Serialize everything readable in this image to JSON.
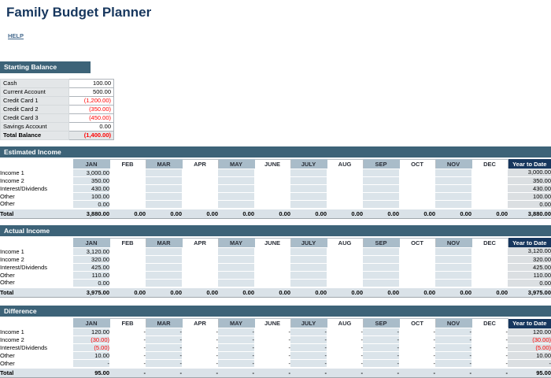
{
  "page": {
    "title": "Family Budget Planner",
    "help_label": "HELP"
  },
  "colors": {
    "title_navy": "#17375E",
    "section_band": "#3D6378",
    "month_header_shade": "#A9BCC9",
    "data_shade": "#DBE4EA",
    "ytd_header": "#17375E",
    "ytd_cell": "#DBDFE2",
    "total_row": "#DAE2E8",
    "negative_red": "#FF0000",
    "label_gray": "#E3E6E8"
  },
  "months": [
    "JAN",
    "FEB",
    "MAR",
    "APR",
    "MAY",
    "JUNE",
    "JULY",
    "AUG",
    "SEP",
    "OCT",
    "NOV",
    "DEC"
  ],
  "ytd_label": "Year to Date",
  "starting_balance": {
    "title": "Starting Balance",
    "rows": [
      {
        "label": "Cash",
        "value": "100.00"
      },
      {
        "label": "Current Account",
        "value": "500.00"
      },
      {
        "label": "Credit Card 1",
        "value": "(1,200.00)"
      },
      {
        "label": "Credit Card 2",
        "value": "(350.00)"
      },
      {
        "label": "Credit Card 3",
        "value": "(450.00)"
      },
      {
        "label": "Savings Account",
        "value": "0.00"
      }
    ],
    "total": {
      "label": "Total Balance",
      "value": "(1,400.00)"
    }
  },
  "income_sections": [
    {
      "title": "Estimated Income",
      "rows": [
        {
          "label": "Income 1",
          "values": [
            "3,000.00",
            "",
            "",
            "",
            "",
            "",
            "",
            "",
            "",
            "",
            "",
            ""
          ],
          "ytd": "3,000.00"
        },
        {
          "label": "Income 2",
          "values": [
            "350.00",
            "",
            "",
            "",
            "",
            "",
            "",
            "",
            "",
            "",
            "",
            ""
          ],
          "ytd": "350.00"
        },
        {
          "label": "Interest/Dividends",
          "values": [
            "430.00",
            "",
            "",
            "",
            "",
            "",
            "",
            "",
            "",
            "",
            "",
            ""
          ],
          "ytd": "430.00"
        },
        {
          "label": "Other",
          "values": [
            "100.00",
            "",
            "",
            "",
            "",
            "",
            "",
            "",
            "",
            "",
            "",
            ""
          ],
          "ytd": "100.00"
        },
        {
          "label": "Other",
          "values": [
            "0.00",
            "",
            "",
            "",
            "",
            "",
            "",
            "",
            "",
            "",
            "",
            ""
          ],
          "ytd": "0.00"
        }
      ],
      "total": {
        "label": "Total",
        "values": [
          "3,880.00",
          "0.00",
          "0.00",
          "0.00",
          "0.00",
          "0.00",
          "0.00",
          "0.00",
          "0.00",
          "0.00",
          "0.00",
          "0.00"
        ],
        "ytd": "3,880.00"
      }
    },
    {
      "title": "Actual Income",
      "rows": [
        {
          "label": "Income 1",
          "values": [
            "3,120.00",
            "",
            "",
            "",
            "",
            "",
            "",
            "",
            "",
            "",
            "",
            ""
          ],
          "ytd": "3,120.00"
        },
        {
          "label": "Income 2",
          "values": [
            "320.00",
            "",
            "",
            "",
            "",
            "",
            "",
            "",
            "",
            "",
            "",
            ""
          ],
          "ytd": "320.00"
        },
        {
          "label": "Interest/Dividends",
          "values": [
            "425.00",
            "",
            "",
            "",
            "",
            "",
            "",
            "",
            "",
            "",
            "",
            ""
          ],
          "ytd": "425.00"
        },
        {
          "label": "Other",
          "values": [
            "110.00",
            "",
            "",
            "",
            "",
            "",
            "",
            "",
            "",
            "",
            "",
            ""
          ],
          "ytd": "110.00"
        },
        {
          "label": "Other",
          "values": [
            "0.00",
            "",
            "",
            "",
            "",
            "",
            "",
            "",
            "",
            "",
            "",
            ""
          ],
          "ytd": "0.00"
        }
      ],
      "total": {
        "label": "Total",
        "values": [
          "3,975.00",
          "0.00",
          "0.00",
          "0.00",
          "0.00",
          "0.00",
          "0.00",
          "0.00",
          "0.00",
          "0.00",
          "0.00",
          "0.00"
        ],
        "ytd": "3,975.00"
      }
    },
    {
      "title": "Difference",
      "rows": [
        {
          "label": "Income 1",
          "values": [
            "120.00",
            "-",
            "-",
            "-",
            "-",
            "-",
            "-",
            "-",
            "-",
            "-",
            "-",
            "-"
          ],
          "ytd": "120.00"
        },
        {
          "label": "Income 2",
          "values": [
            "(30.00)",
            "-",
            "-",
            "-",
            "-",
            "-",
            "-",
            "-",
            "-",
            "-",
            "-",
            "-"
          ],
          "ytd": "(30.00)"
        },
        {
          "label": "Interest/Dividends",
          "values": [
            "(5.00)",
            "-",
            "-",
            "-",
            "-",
            "-",
            "-",
            "-",
            "-",
            "-",
            "-",
            "-"
          ],
          "ytd": "(5.00)"
        },
        {
          "label": "Other",
          "values": [
            "10.00",
            "-",
            "-",
            "-",
            "-",
            "-",
            "-",
            "-",
            "-",
            "-",
            "-",
            "-"
          ],
          "ytd": "10.00"
        },
        {
          "label": "Other",
          "values": [
            "-",
            "-",
            "-",
            "-",
            "-",
            "-",
            "-",
            "-",
            "-",
            "-",
            "-",
            "-"
          ],
          "ytd": "-"
        }
      ],
      "total": {
        "label": "Total",
        "values": [
          "95.00",
          "-",
          "-",
          "-",
          "-",
          "-",
          "-",
          "-",
          "-",
          "-",
          "-",
          "-"
        ],
        "ytd": "95.00"
      }
    }
  ]
}
